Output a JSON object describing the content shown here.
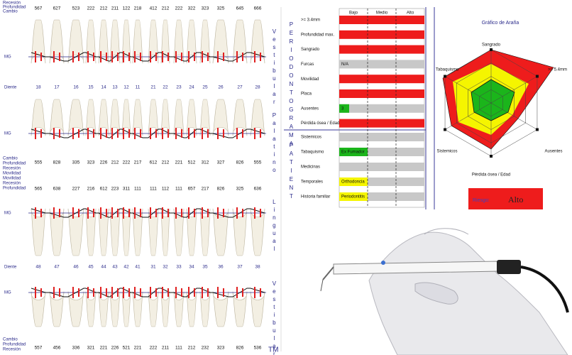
{
  "periodontogram": {
    "upper_labels": [
      "Recesión",
      "Profundidad",
      "Cambio"
    ],
    "upper_top_values": [
      "567",
      "627",
      "523",
      "222",
      "212",
      "211",
      "122",
      "218",
      "412",
      "212",
      "222",
      "322",
      "323",
      "325",
      "645",
      "666"
    ],
    "upper_side": "Vestibular",
    "mg": "MG",
    "tooth_label": "Diente",
    "upper_teeth": [
      "18",
      "17",
      "16",
      "15",
      "14",
      "13",
      "12",
      "11",
      "21",
      "22",
      "23",
      "24",
      "25",
      "26",
      "27",
      "28"
    ],
    "palatal_side": "Palatino",
    "palatal_values": [
      "555",
      "828",
      "335",
      "323",
      "226",
      "212",
      "222",
      "217",
      "612",
      "212",
      "221",
      "512",
      "312",
      "327",
      "826",
      "555"
    ],
    "middle_labels": [
      "Cambio",
      "Profundidad",
      "Recesión",
      "Movilidad",
      "Movilidad",
      "Recesión",
      "Profundidad"
    ],
    "lower_top_values": [
      "565",
      "638",
      "227",
      "216",
      "612",
      "223",
      "311",
      "111",
      "111",
      "112",
      "111",
      "657",
      "217",
      "826",
      "325",
      "636"
    ],
    "lingual_side": "Lingual",
    "lower_teeth": [
      "48",
      "47",
      "46",
      "45",
      "44",
      "43",
      "42",
      "41",
      "31",
      "32",
      "33",
      "34",
      "35",
      "36",
      "37",
      "38"
    ],
    "lower_side": "Vestibular",
    "lower_bottom_values": [
      "557",
      "456",
      "336",
      "321",
      "221",
      "226",
      "521",
      "221",
      "222",
      "211",
      "111",
      "212",
      "232",
      "323",
      "826",
      "536"
    ],
    "bottom_labels": [
      "Cambio",
      "Profundidad",
      "Recesión"
    ],
    "mark": "TM"
  },
  "risk_table": {
    "section_1": "PERIODONTOGRAMA",
    "section_2": "PATIENT",
    "columns": [
      "Bajo",
      "Medio",
      "Alto"
    ],
    "rows": [
      {
        "label": ">= 3.4mm",
        "color": "#ee1c1c"
      },
      {
        "label": "Profundidad max.",
        "color": "#ee1c1c"
      },
      {
        "label": "Sangrado",
        "color": "#ee1c1c"
      },
      {
        "label": "Furcas",
        "color": "#c8c8c8",
        "text": "N/A"
      },
      {
        "label": "Movilidad",
        "color": "#ee1c1c"
      },
      {
        "label": "Placa",
        "color": "#ee1c1c"
      },
      {
        "label": "Ausentes",
        "color": "#1bb51b",
        "text": "3"
      },
      {
        "label": "Pérdida ósea / Edad",
        "color": "#ee1c1c"
      }
    ],
    "patient_rows": [
      {
        "label": "Sistemicos",
        "color": "#c8c8c8"
      },
      {
        "label": "Tabaquismo",
        "color": "#1bb51b",
        "text": "Ex Fumador"
      },
      {
        "label": "Medicinas",
        "color": "#c8c8c8"
      },
      {
        "label": "Temporales",
        "color": "#f5f500",
        "text": "Orthodoncia"
      },
      {
        "label": "Historia familiar",
        "color": "#f5f500",
        "text": "Periodontitis"
      }
    ]
  },
  "spider": {
    "title": "Gráfico de Araña",
    "axes": [
      "Sangrado",
      ">= 5.4mm",
      "Ausentes",
      "Pérdida ósea / Edad",
      "Sistemicos",
      "Tabaquismo"
    ]
  },
  "risk": {
    "label": "Riesgo:",
    "value": "Alto"
  }
}
